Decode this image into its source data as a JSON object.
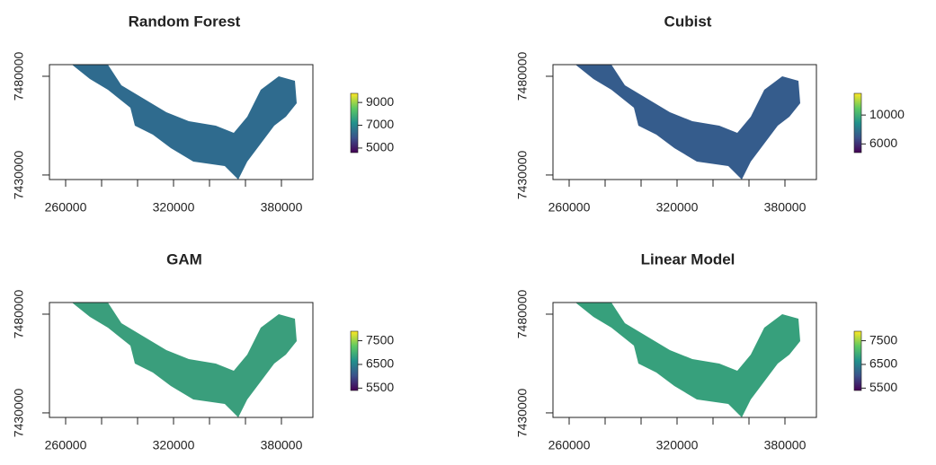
{
  "chart_data": [
    {
      "type": "raster",
      "title": "Random Forest",
      "colormap": "viridis",
      "fill_color": "#2f6b8e",
      "xlim": [
        251000,
        397500
      ],
      "xticks": [
        260000,
        320000,
        380000
      ],
      "xminor_ticks": [
        280000,
        300000,
        340000,
        360000
      ],
      "ylim": [
        7427700,
        7485900
      ],
      "yticks": [
        7430000,
        7480000
      ],
      "colorbar": {
        "lim": [
          4600,
          9800
        ],
        "ticks": [
          5000,
          7000,
          9000
        ]
      }
    },
    {
      "type": "raster",
      "title": "Cubist",
      "colormap": "viridis",
      "fill_color": "#355c8c",
      "xlim": [
        251000,
        397500
      ],
      "xticks": [
        260000,
        320000,
        380000
      ],
      "xminor_ticks": [
        280000,
        300000,
        340000,
        360000
      ],
      "ylim": [
        7427700,
        7485900
      ],
      "yticks": [
        7430000,
        7480000
      ],
      "colorbar": {
        "lim": [
          4800,
          13000
        ],
        "ticks": [
          6000,
          10000
        ]
      }
    },
    {
      "type": "raster",
      "title": "GAM",
      "colormap": "viridis",
      "fill_color": "#3a9e7c",
      "xlim": [
        251000,
        397500
      ],
      "xticks": [
        260000,
        320000,
        380000
      ],
      "xminor_ticks": [
        280000,
        300000,
        340000,
        360000
      ],
      "ylim": [
        7427700,
        7485900
      ],
      "yticks": [
        7430000,
        7480000
      ],
      "colorbar": {
        "lim": [
          5400,
          7900
        ],
        "ticks": [
          5500,
          6500,
          7500
        ]
      }
    },
    {
      "type": "raster",
      "title": "Linear Model",
      "colormap": "viridis",
      "fill_color": "#37a07c",
      "xlim": [
        251000,
        397500
      ],
      "xticks": [
        260000,
        320000,
        380000
      ],
      "xminor_ticks": [
        280000,
        300000,
        340000,
        360000
      ],
      "ylim": [
        7427700,
        7485900
      ],
      "yticks": [
        7430000,
        7480000
      ],
      "colorbar": {
        "lim": [
          5400,
          7900
        ],
        "ticks": [
          5500,
          6500,
          7500
        ]
      }
    }
  ]
}
